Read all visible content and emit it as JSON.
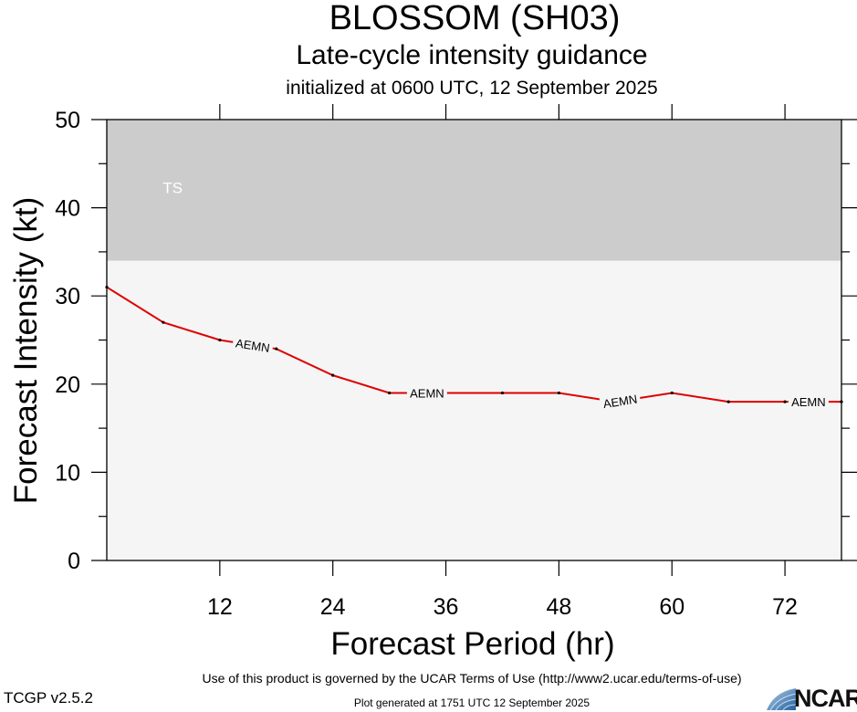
{
  "title": "BLOSSOM (SH03)",
  "subtitle": "Late-cycle intensity guidance",
  "initialized": "initialized at 0600 UTC, 12 September 2025",
  "footer": {
    "terms": "Use of this product is governed by the UCAR Terms of Use (http://www2.ucar.edu/terms-of-use)",
    "version": "TCGP v2.5.2",
    "generated": "Plot generated at 1751 UTC   12 September 2025",
    "logo_text": "NCAR"
  },
  "chart_data": {
    "type": "line",
    "title": "BLOSSOM (SH03)",
    "xlabel": "Forecast Period (hr)",
    "ylabel": "Forecast Intensity (kt)",
    "xlim": [
      0,
      78
    ],
    "ylim": [
      0,
      50
    ],
    "x_ticks": [
      12,
      24,
      36,
      48,
      60,
      72
    ],
    "y_ticks": [
      0,
      10,
      20,
      30,
      40,
      50
    ],
    "bands": [
      {
        "label": "TS",
        "y_from": 34,
        "y_to": 50,
        "color": "#cccccc"
      }
    ],
    "below_band_color": "#f5f5f5",
    "grid": false,
    "series": [
      {
        "name": "AEMN",
        "color": "#e00000",
        "x": [
          0,
          6,
          12,
          18,
          24,
          30,
          36,
          42,
          48,
          54,
          60,
          66,
          72,
          78
        ],
        "y": [
          31,
          27,
          25,
          24,
          21,
          19,
          19,
          19,
          19,
          18,
          19,
          18,
          18,
          18
        ],
        "label_positions": [
          15.5,
          34,
          54.5,
          74.5
        ]
      }
    ]
  }
}
